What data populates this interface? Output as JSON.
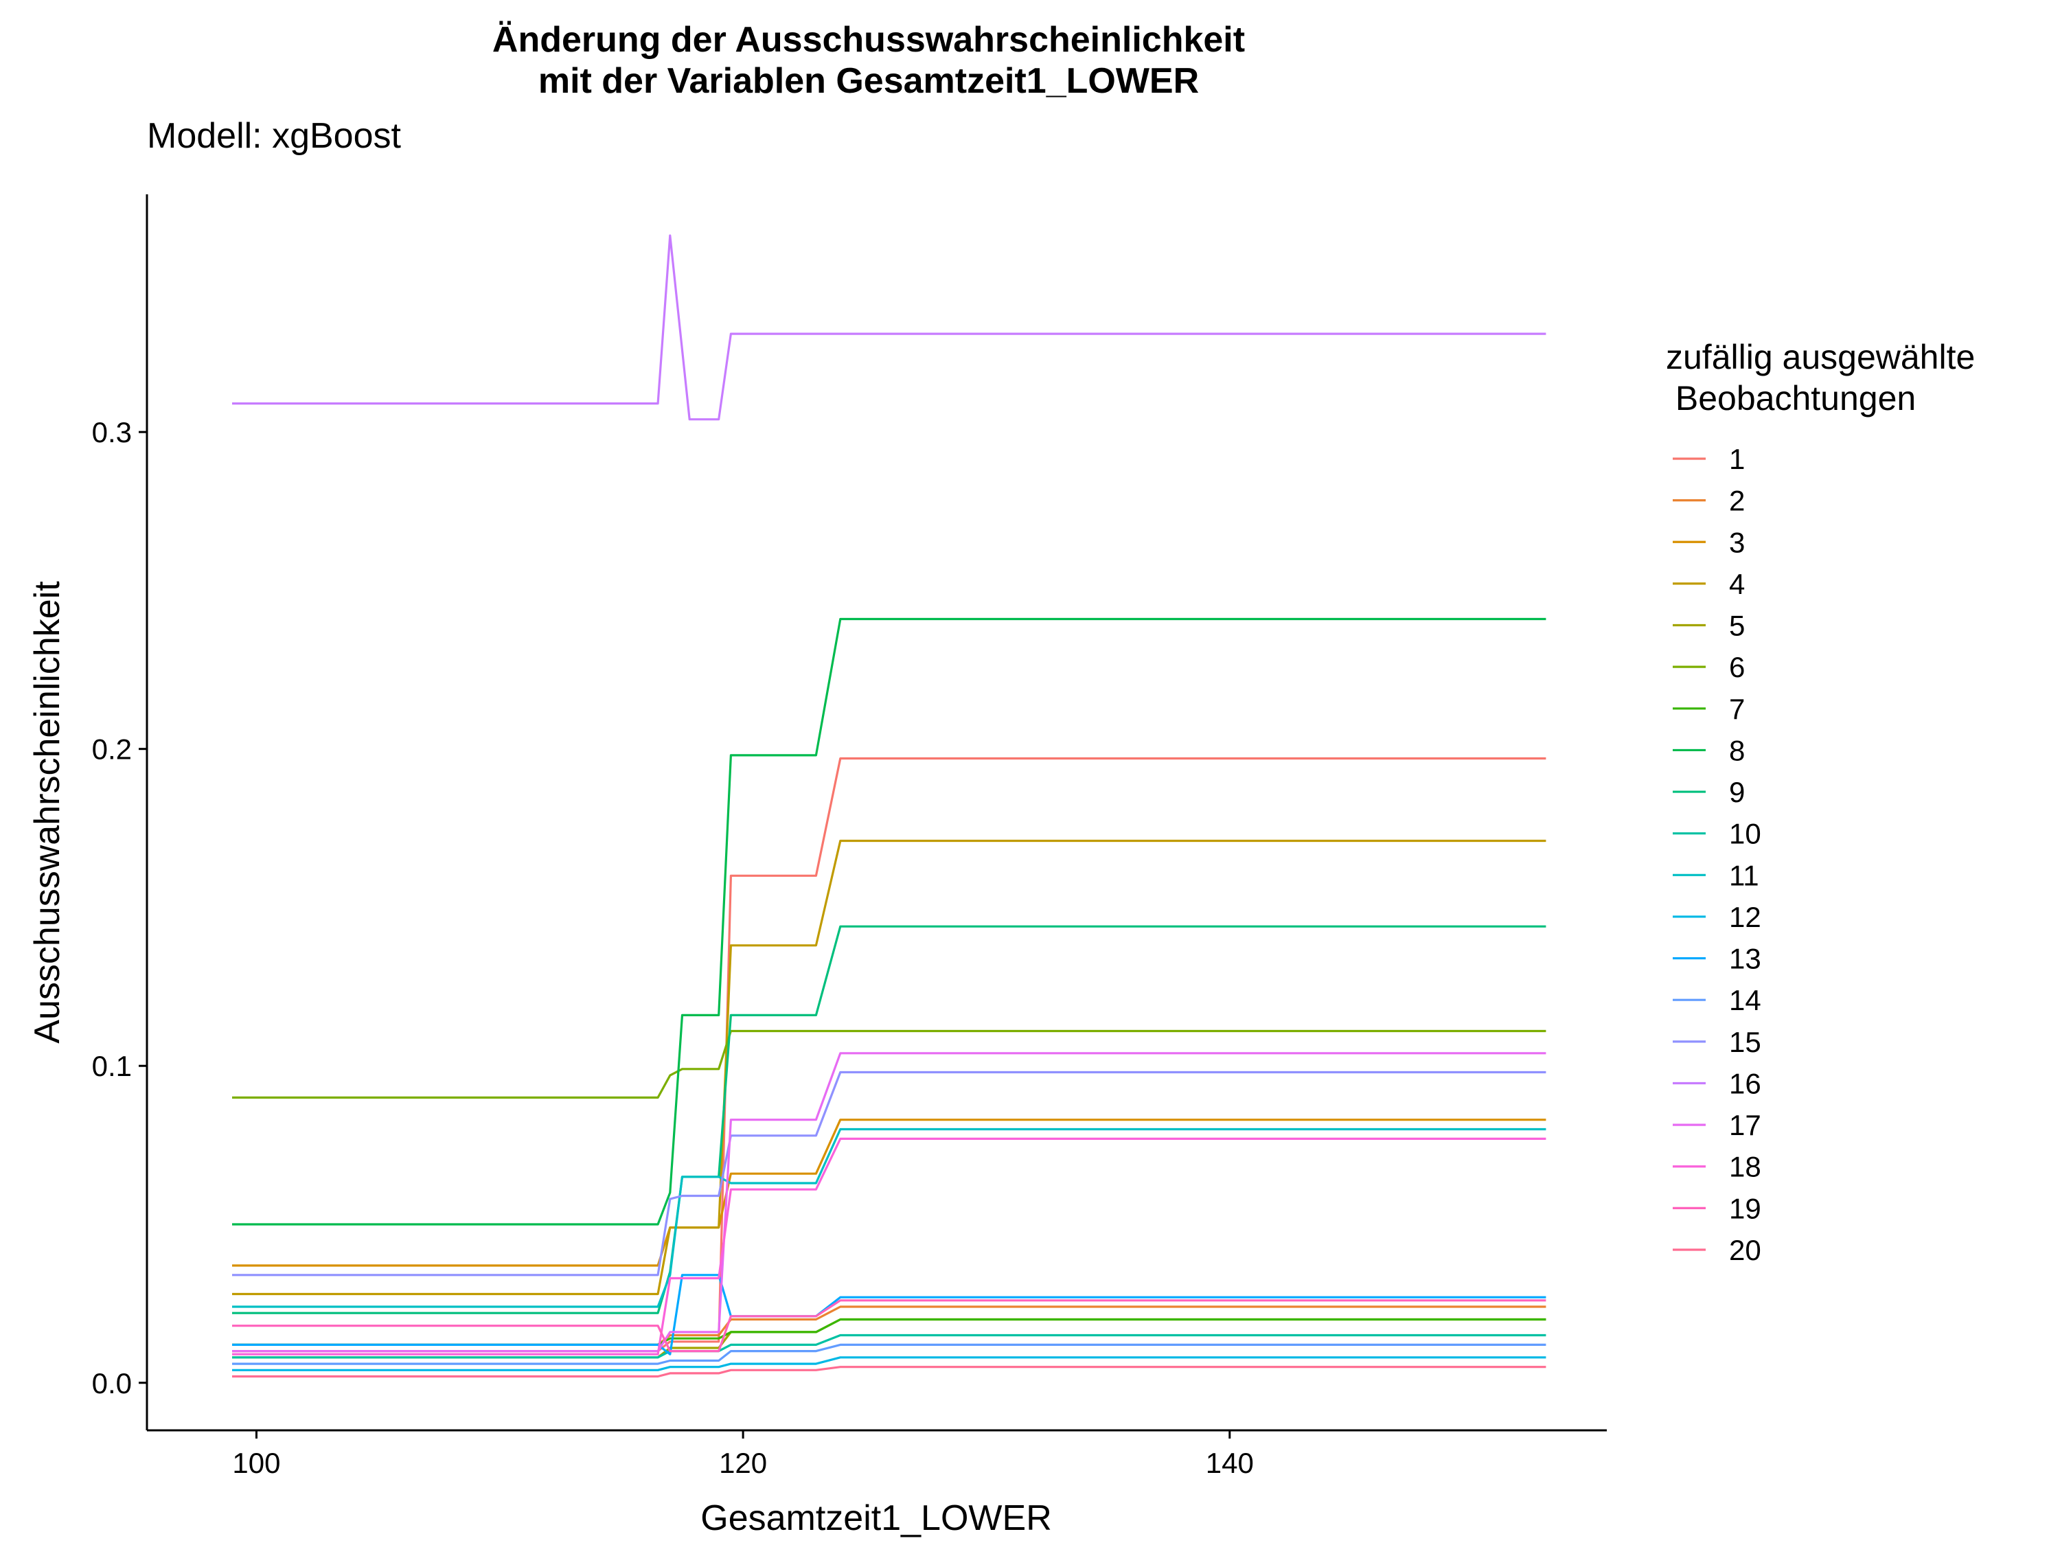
{
  "chart_data": {
    "type": "line",
    "title": [
      "Änderung der Ausschusswahrscheinlichkeit",
      "mit der Variablen Gesamtzeit1_LOWER"
    ],
    "subtitle": "Modell: xgBoost",
    "xlabel": "Gesamtzeit1_LOWER",
    "ylabel": "Ausschusswahrscheinlichkeit",
    "xlim": [
      95.5,
      155.5
    ],
    "ylim": [
      -0.015,
      0.375
    ],
    "xticks": [
      100,
      120,
      140
    ],
    "xtick_labels": [
      "100",
      "120",
      "140"
    ],
    "yticks": [
      0.0,
      0.1,
      0.2,
      0.3
    ],
    "ytick_labels": [
      "0.0",
      "0.1",
      "0.2",
      "0.3"
    ],
    "grid": false,
    "legend": {
      "title": [
        "zufällig ausgewählte",
        " Beobachtungen"
      ],
      "position": "right"
    },
    "series": [
      {
        "name": "1",
        "color": "#F8766D",
        "points": [
          [
            99,
            0.01
          ],
          [
            116.5,
            0.01
          ],
          [
            117,
            0.013
          ],
          [
            118,
            0.013
          ],
          [
            119,
            0.013
          ],
          [
            119.5,
            0.16
          ],
          [
            123,
            0.16
          ],
          [
            124,
            0.197
          ],
          [
            153,
            0.197
          ]
        ]
      },
      {
        "name": "2",
        "color": "#EA8331",
        "points": [
          [
            99,
            0.012
          ],
          [
            116.5,
            0.012
          ],
          [
            117,
            0.015
          ],
          [
            119,
            0.015
          ],
          [
            119.5,
            0.02
          ],
          [
            123,
            0.02
          ],
          [
            124,
            0.024
          ],
          [
            153,
            0.024
          ]
        ]
      },
      {
        "name": "3",
        "color": "#D89000",
        "points": [
          [
            99,
            0.037
          ],
          [
            116.5,
            0.037
          ],
          [
            117,
            0.049
          ],
          [
            119,
            0.049
          ],
          [
            119.5,
            0.066
          ],
          [
            123,
            0.066
          ],
          [
            124,
            0.083
          ],
          [
            153,
            0.083
          ]
        ]
      },
      {
        "name": "4",
        "color": "#C09B00",
        "points": [
          [
            99,
            0.028
          ],
          [
            116.5,
            0.028
          ],
          [
            117,
            0.049
          ],
          [
            118,
            0.049
          ],
          [
            119,
            0.049
          ],
          [
            119.5,
            0.138
          ],
          [
            123,
            0.138
          ],
          [
            124,
            0.171
          ],
          [
            153,
            0.171
          ]
        ]
      },
      {
        "name": "5",
        "color": "#A3A500",
        "points": [
          [
            99,
            0.008
          ],
          [
            116.5,
            0.008
          ],
          [
            117,
            0.011
          ],
          [
            119,
            0.011
          ],
          [
            119.5,
            0.016
          ],
          [
            123,
            0.016
          ],
          [
            124,
            0.02
          ],
          [
            153,
            0.02
          ]
        ]
      },
      {
        "name": "6",
        "color": "#7CAE00",
        "points": [
          [
            99,
            0.09
          ],
          [
            116.5,
            0.09
          ],
          [
            117,
            0.097
          ],
          [
            117.5,
            0.099
          ],
          [
            119,
            0.099
          ],
          [
            119.5,
            0.111
          ],
          [
            123,
            0.111
          ],
          [
            124,
            0.111
          ],
          [
            153,
            0.111
          ]
        ]
      },
      {
        "name": "7",
        "color": "#39B600",
        "points": [
          [
            99,
            0.012
          ],
          [
            116.5,
            0.012
          ],
          [
            117,
            0.014
          ],
          [
            119,
            0.014
          ],
          [
            119.5,
            0.016
          ],
          [
            123,
            0.016
          ],
          [
            124,
            0.02
          ],
          [
            153,
            0.02
          ]
        ]
      },
      {
        "name": "8",
        "color": "#00BB4E",
        "points": [
          [
            99,
            0.05
          ],
          [
            116.5,
            0.05
          ],
          [
            117,
            0.06
          ],
          [
            117.5,
            0.116
          ],
          [
            119,
            0.116
          ],
          [
            119.5,
            0.198
          ],
          [
            123,
            0.198
          ],
          [
            124,
            0.241
          ],
          [
            153,
            0.241
          ]
        ]
      },
      {
        "name": "9",
        "color": "#00BF7D",
        "points": [
          [
            99,
            0.022
          ],
          [
            116.5,
            0.022
          ],
          [
            117,
            0.035
          ],
          [
            117.5,
            0.065
          ],
          [
            119,
            0.065
          ],
          [
            119.5,
            0.116
          ],
          [
            123,
            0.116
          ],
          [
            124,
            0.144
          ],
          [
            153,
            0.144
          ]
        ]
      },
      {
        "name": "10",
        "color": "#00C1A3",
        "points": [
          [
            99,
            0.008
          ],
          [
            116.5,
            0.008
          ],
          [
            117,
            0.01
          ],
          [
            119,
            0.01
          ],
          [
            119.5,
            0.012
          ],
          [
            123,
            0.012
          ],
          [
            124,
            0.015
          ],
          [
            153,
            0.015
          ]
        ]
      },
      {
        "name": "11",
        "color": "#00BFC4",
        "points": [
          [
            99,
            0.024
          ],
          [
            116.5,
            0.024
          ],
          [
            117,
            0.034
          ],
          [
            117.5,
            0.065
          ],
          [
            119,
            0.065
          ],
          [
            119.5,
            0.063
          ],
          [
            123,
            0.063
          ],
          [
            124,
            0.08
          ],
          [
            153,
            0.08
          ]
        ]
      },
      {
        "name": "12",
        "color": "#00B8E5",
        "points": [
          [
            99,
            0.004
          ],
          [
            116.5,
            0.004
          ],
          [
            117,
            0.005
          ],
          [
            119,
            0.005
          ],
          [
            119.5,
            0.006
          ],
          [
            123,
            0.006
          ],
          [
            124,
            0.008
          ],
          [
            153,
            0.008
          ]
        ]
      },
      {
        "name": "13",
        "color": "#00A9FF",
        "points": [
          [
            99,
            0.012
          ],
          [
            116.5,
            0.012
          ],
          [
            117,
            0.009
          ],
          [
            117.5,
            0.034
          ],
          [
            119,
            0.034
          ],
          [
            119.5,
            0.021
          ],
          [
            123,
            0.021
          ],
          [
            124,
            0.027
          ],
          [
            153,
            0.027
          ]
        ]
      },
      {
        "name": "14",
        "color": "#619CFF",
        "points": [
          [
            99,
            0.006
          ],
          [
            116.5,
            0.006
          ],
          [
            117,
            0.007
          ],
          [
            119,
            0.007
          ],
          [
            119.5,
            0.01
          ],
          [
            123,
            0.01
          ],
          [
            124,
            0.012
          ],
          [
            153,
            0.012
          ]
        ]
      },
      {
        "name": "15",
        "color": "#8F91FF",
        "points": [
          [
            99,
            0.034
          ],
          [
            116.5,
            0.034
          ],
          [
            117,
            0.058
          ],
          [
            117.5,
            0.059
          ],
          [
            119,
            0.059
          ],
          [
            119.5,
            0.078
          ],
          [
            123,
            0.078
          ],
          [
            124,
            0.098
          ],
          [
            153,
            0.098
          ]
        ]
      },
      {
        "name": "16",
        "color": "#C77CFF",
        "points": [
          [
            99,
            0.309
          ],
          [
            116.5,
            0.309
          ],
          [
            117,
            0.362
          ],
          [
            117.8,
            0.304
          ],
          [
            119,
            0.304
          ],
          [
            119.5,
            0.331
          ],
          [
            123,
            0.331
          ],
          [
            124,
            0.331
          ],
          [
            153,
            0.331
          ]
        ]
      },
      {
        "name": "17",
        "color": "#E76BF3",
        "points": [
          [
            99,
            0.01
          ],
          [
            116.5,
            0.01
          ],
          [
            117,
            0.016
          ],
          [
            119,
            0.016
          ],
          [
            119.5,
            0.083
          ],
          [
            123,
            0.083
          ],
          [
            124,
            0.104
          ],
          [
            153,
            0.104
          ]
        ]
      },
      {
        "name": "18",
        "color": "#FA62DB",
        "points": [
          [
            99,
            0.009
          ],
          [
            116.5,
            0.009
          ],
          [
            117,
            0.033
          ],
          [
            119,
            0.033
          ],
          [
            119.5,
            0.061
          ],
          [
            123,
            0.061
          ],
          [
            124,
            0.077
          ],
          [
            153,
            0.077
          ]
        ]
      },
      {
        "name": "19",
        "color": "#FF62BC",
        "points": [
          [
            99,
            0.018
          ],
          [
            116.5,
            0.018
          ],
          [
            117,
            0.01
          ],
          [
            119,
            0.01
          ],
          [
            119.5,
            0.021
          ],
          [
            123,
            0.021
          ],
          [
            124,
            0.026
          ],
          [
            153,
            0.026
          ]
        ]
      },
      {
        "name": "20",
        "color": "#FF6C91",
        "points": [
          [
            99,
            0.002
          ],
          [
            116.5,
            0.002
          ],
          [
            117,
            0.003
          ],
          [
            119,
            0.003
          ],
          [
            119.5,
            0.004
          ],
          [
            123,
            0.004
          ],
          [
            124,
            0.005
          ],
          [
            153,
            0.005
          ]
        ]
      }
    ]
  }
}
